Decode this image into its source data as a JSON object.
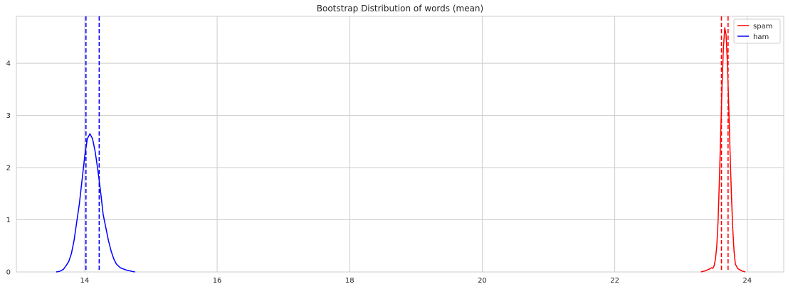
{
  "chart_data": {
    "type": "line",
    "title": "Bootstrap Distribution of words (mean)",
    "xlabel": "",
    "ylabel": "",
    "xlim": [
      12.97,
      24.55
    ],
    "ylim": [
      0,
      4.9
    ],
    "x_ticks": [
      14,
      16,
      18,
      20,
      22,
      24
    ],
    "y_ticks": [
      0,
      1,
      2,
      3,
      4
    ],
    "grid": true,
    "legend_position": "top-right",
    "series": [
      {
        "name": "spam",
        "color": "#ff0000",
        "points": [
          [
            23.3,
            0.0
          ],
          [
            23.36,
            0.02
          ],
          [
            23.42,
            0.05
          ],
          [
            23.46,
            0.08
          ],
          [
            23.48,
            0.07
          ],
          [
            23.5,
            0.12
          ],
          [
            23.52,
            0.25
          ],
          [
            23.54,
            0.5
          ],
          [
            23.56,
            1.0
          ],
          [
            23.58,
            1.8
          ],
          [
            23.6,
            2.7
          ],
          [
            23.62,
            3.6
          ],
          [
            23.64,
            4.3
          ],
          [
            23.66,
            4.68
          ],
          [
            23.68,
            4.55
          ],
          [
            23.7,
            4.0
          ],
          [
            23.72,
            3.2
          ],
          [
            23.74,
            2.3
          ],
          [
            23.76,
            1.5
          ],
          [
            23.78,
            0.85
          ],
          [
            23.8,
            0.4
          ],
          [
            23.82,
            0.15
          ],
          [
            23.86,
            0.06
          ],
          [
            23.92,
            0.02
          ],
          [
            23.97,
            0.0
          ]
        ]
      },
      {
        "name": "ham",
        "color": "#0000ff",
        "points": [
          [
            13.57,
            0.0
          ],
          [
            13.62,
            0.01
          ],
          [
            13.68,
            0.05
          ],
          [
            13.72,
            0.12
          ],
          [
            13.76,
            0.2
          ],
          [
            13.8,
            0.35
          ],
          [
            13.84,
            0.6
          ],
          [
            13.88,
            0.95
          ],
          [
            13.92,
            1.3
          ],
          [
            13.96,
            1.75
          ],
          [
            14.0,
            2.2
          ],
          [
            14.04,
            2.55
          ],
          [
            14.08,
            2.65
          ],
          [
            14.12,
            2.55
          ],
          [
            14.16,
            2.3
          ],
          [
            14.2,
            1.95
          ],
          [
            14.24,
            1.55
          ],
          [
            14.28,
            1.1
          ],
          [
            14.32,
            0.85
          ],
          [
            14.36,
            0.6
          ],
          [
            14.4,
            0.4
          ],
          [
            14.44,
            0.25
          ],
          [
            14.48,
            0.15
          ],
          [
            14.54,
            0.08
          ],
          [
            14.62,
            0.04
          ],
          [
            14.72,
            0.01
          ],
          [
            14.76,
            0.0
          ]
        ]
      }
    ],
    "vlines": [
      {
        "series": "ham",
        "x": 14.02,
        "color": "#0000ff",
        "style": "dashed"
      },
      {
        "series": "ham",
        "x": 14.22,
        "color": "#0000ff",
        "style": "dashed"
      },
      {
        "series": "spam",
        "x": 23.61,
        "color": "#ff0000",
        "style": "dashed"
      },
      {
        "series": "spam",
        "x": 23.71,
        "color": "#ff0000",
        "style": "dashed"
      }
    ]
  }
}
